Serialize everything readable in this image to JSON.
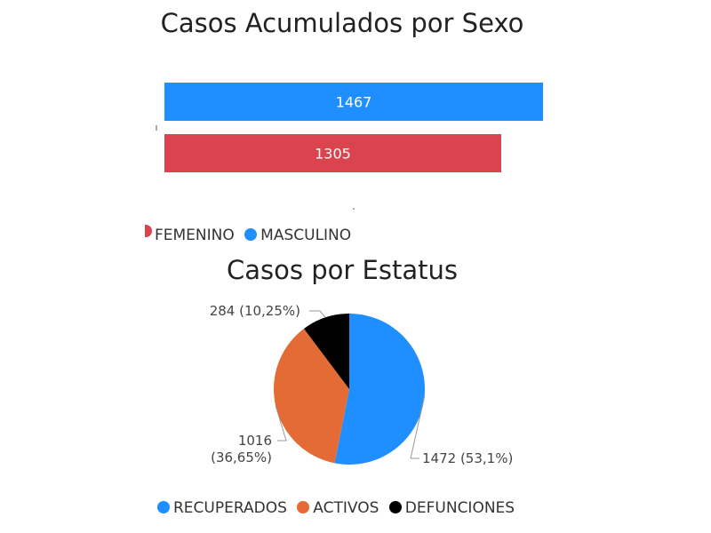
{
  "charts": [
    {
      "title": "Casos Acumulados por Sexo",
      "legend": [
        {
          "label": "FEMENINO",
          "color": "#D9444F"
        },
        {
          "label": "MASCULINO",
          "color": "#1F8FFF"
        }
      ]
    },
    {
      "title": "Casos por Estatus",
      "legend": [
        {
          "label": "RECUPERADOS",
          "color": "#1F8FFF"
        },
        {
          "label": "ACTIVOS",
          "color": "#E46B35"
        },
        {
          "label": "DEFUNCIONES",
          "color": "#000000"
        }
      ]
    }
  ],
  "chart_data": [
    {
      "type": "bar",
      "orientation": "horizontal",
      "title": "Casos Acumulados por Sexo",
      "categories": [
        "MASCULINO",
        "FEMENINO"
      ],
      "values": [
        1467,
        1305
      ],
      "colors": [
        "#1F8FFF",
        "#D9444F"
      ],
      "data_labels": [
        "1467",
        "1305"
      ],
      "legend_position": "bottom-left"
    },
    {
      "type": "pie",
      "title": "Casos por Estatus",
      "categories": [
        "RECUPERADOS",
        "ACTIVOS",
        "DEFUNCIONES"
      ],
      "values": [
        1472,
        1016,
        284
      ],
      "percent_labels": [
        "53,1%",
        "36,65%",
        "10,25%"
      ],
      "colors": [
        "#1F8FFF",
        "#E46B35",
        "#000000"
      ],
      "data_labels": [
        "1472 (53,1%)",
        "1016 (36,65%)",
        "284 (10,25%)"
      ],
      "legend_position": "bottom"
    }
  ]
}
